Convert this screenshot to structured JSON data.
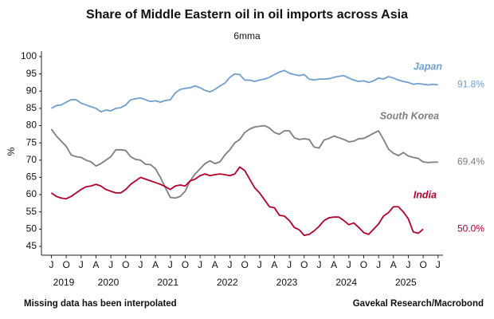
{
  "chart_data": {
    "type": "line",
    "title": "Share of Middle Eastern oil in oil imports across Asia",
    "subtitle": "6mma",
    "y_label": "%",
    "note": "Missing data has been interpolated",
    "source": "Gavekal Research/Macrobond",
    "x": [
      "2019-07",
      "2019-08",
      "2019-09",
      "2019-10",
      "2019-11",
      "2019-12",
      "2020-01",
      "2020-02",
      "2020-03",
      "2020-04",
      "2020-05",
      "2020-06",
      "2020-07",
      "2020-08",
      "2020-09",
      "2020-10",
      "2020-11",
      "2020-12",
      "2021-01",
      "2021-02",
      "2021-03",
      "2021-04",
      "2021-05",
      "2021-06",
      "2021-07",
      "2021-08",
      "2021-09",
      "2021-10",
      "2021-11",
      "2021-12",
      "2022-01",
      "2022-02",
      "2022-03",
      "2022-04",
      "2022-05",
      "2022-06",
      "2022-07",
      "2022-08",
      "2022-09",
      "2022-10",
      "2022-11",
      "2022-12",
      "2023-01",
      "2023-02",
      "2023-03",
      "2023-04",
      "2023-05",
      "2023-06",
      "2023-07",
      "2023-08",
      "2023-09",
      "2023-10",
      "2023-11",
      "2023-12",
      "2024-01",
      "2024-02",
      "2024-03",
      "2024-04",
      "2024-05",
      "2024-06",
      "2024-07",
      "2024-08",
      "2024-09",
      "2024-10",
      "2024-11",
      "2024-12",
      "2025-01",
      "2025-02",
      "2025-03",
      "2025-04",
      "2025-05",
      "2025-06",
      "2025-07",
      "2025-08",
      "2025-09",
      "2025-10",
      "2025-11",
      "2025-12",
      "2026-01"
    ],
    "xlim": [
      "2019-05",
      "2026-02"
    ],
    "xticks": [
      {
        "value": "2019-07",
        "label": "J"
      },
      {
        "value": "2019-10",
        "label": "O"
      },
      {
        "value": "2020-01",
        "label": "J"
      },
      {
        "value": "2020-04",
        "label": "A"
      },
      {
        "value": "2020-07",
        "label": "J"
      },
      {
        "value": "2020-10",
        "label": "O"
      },
      {
        "value": "2021-01",
        "label": "J"
      },
      {
        "value": "2021-04",
        "label": "A"
      },
      {
        "value": "2021-07",
        "label": "J"
      },
      {
        "value": "2021-10",
        "label": "O"
      },
      {
        "value": "2022-01",
        "label": "J"
      },
      {
        "value": "2022-04",
        "label": "A"
      },
      {
        "value": "2022-07",
        "label": "J"
      },
      {
        "value": "2022-10",
        "label": "O"
      },
      {
        "value": "2023-01",
        "label": "J"
      },
      {
        "value": "2023-04",
        "label": "A"
      },
      {
        "value": "2023-07",
        "label": "J"
      },
      {
        "value": "2023-10",
        "label": "O"
      },
      {
        "value": "2024-01",
        "label": "J"
      },
      {
        "value": "2024-04",
        "label": "A"
      },
      {
        "value": "2024-07",
        "label": "J"
      },
      {
        "value": "2024-10",
        "label": "O"
      },
      {
        "value": "2025-01",
        "label": "J"
      },
      {
        "value": "2025-04",
        "label": "A"
      },
      {
        "value": "2025-07",
        "label": "J"
      },
      {
        "value": "2025-10",
        "label": "O"
      },
      {
        "value": "2026-01",
        "label": "J"
      }
    ],
    "year_labels": [
      "2019",
      "2020",
      "2021",
      "2022",
      "2023",
      "2024",
      "2025"
    ],
    "ylim": [
      42.5,
      101.5
    ],
    "yticks": [
      45,
      50,
      55,
      60,
      65,
      70,
      75,
      80,
      85,
      90,
      95,
      100
    ],
    "series": [
      {
        "name": "Japan",
        "color": "#6f9fd1",
        "end_label": "91.8%",
        "values": [
          85,
          85.8,
          86,
          86.8,
          87.5,
          87.5,
          86.5,
          86,
          85.5,
          85,
          84,
          84.5,
          84.3,
          85,
          85.2,
          86,
          87.5,
          87.8,
          88,
          87.5,
          87,
          87.2,
          86.8,
          87.3,
          87.5,
          89.5,
          90.5,
          90.8,
          91,
          91.5,
          91,
          90.2,
          89.8,
          90.5,
          91.5,
          92.3,
          94,
          95,
          94.8,
          93.2,
          93.2,
          92.8,
          93.2,
          93.5,
          94,
          94.8,
          95.5,
          96,
          95.2,
          94.8,
          94.5,
          94.8,
          93.5,
          93.2,
          93.5,
          93.5,
          93.6,
          94,
          94.3,
          94.5,
          93.8,
          93.2,
          92.8,
          93,
          92.5,
          93,
          93.8,
          93.5,
          94.2,
          93.8,
          93.2,
          92.8,
          92.5,
          92,
          92.2,
          92,
          91.8,
          92,
          91.8
        ]
      },
      {
        "name": "South Korea",
        "color": "#7f7f7f",
        "end_label": "69.4%",
        "values": [
          79,
          77,
          75.5,
          74,
          71.5,
          71,
          70.8,
          70,
          69.5,
          68.3,
          69,
          70,
          71,
          73,
          73,
          72.8,
          71,
          70.2,
          70,
          68.8,
          68.7,
          67.5,
          65,
          62,
          59.2,
          59,
          59.5,
          61,
          64,
          66,
          67.5,
          69,
          69.8,
          69,
          69.5,
          71.5,
          73,
          75,
          76,
          78,
          79,
          79.6,
          79.8,
          80,
          79.3,
          78,
          77.5,
          78.5,
          78.5,
          76.5,
          76,
          76.2,
          76,
          73.8,
          73.5,
          75.8,
          76.3,
          77,
          76.5,
          76,
          75.3,
          75.5,
          76.2,
          76.3,
          77,
          77.8,
          78.5,
          76,
          73.2,
          72,
          71.3,
          72.2,
          71.2,
          70.8,
          70.5,
          69.5,
          69.3,
          69.4,
          69.4
        ]
      },
      {
        "name": "India",
        "color": "#b5002c",
        "end_label": "50.0%",
        "values": [
          60.5,
          59.5,
          59,
          58.8,
          59.5,
          60.5,
          61.5,
          62.3,
          62.5,
          63,
          62.5,
          61.5,
          61,
          60.5,
          60.5,
          61.5,
          63,
          64,
          65,
          64.5,
          64,
          63.5,
          63,
          62.3,
          61.5,
          62.5,
          62.8,
          62.5,
          64,
          64.5,
          65.5,
          66,
          65.5,
          65.8,
          66,
          65.8,
          65.5,
          66,
          68,
          67,
          64.5,
          62,
          60.5,
          58.5,
          56.5,
          56.2,
          54,
          53.8,
          52.5,
          50.5,
          49.8,
          48.2,
          48.5,
          49.5,
          50.8,
          52.5,
          53.3,
          53.5,
          53.5,
          52.5,
          51.3,
          51.8,
          50.5,
          49,
          48.5,
          50,
          51.5,
          53.8,
          54.8,
          56.5,
          56.5,
          55,
          53,
          49.2,
          48.8,
          50,
          null,
          null,
          null
        ]
      }
    ]
  }
}
